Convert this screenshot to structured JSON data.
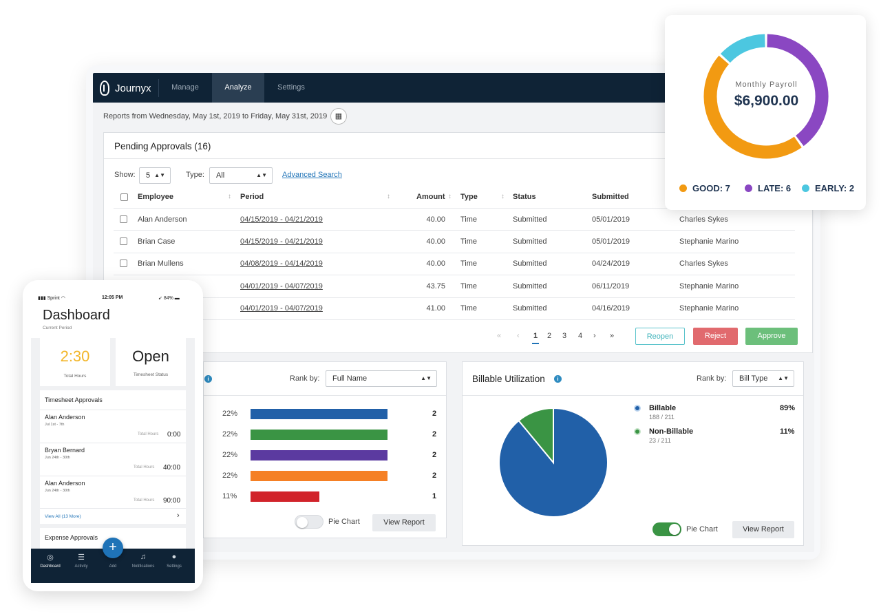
{
  "nav": {
    "brand": "Journyx",
    "items": [
      "Manage",
      "Analyze",
      "Settings"
    ],
    "active": "Analyze"
  },
  "report_range": "Reports from Wednesday, May 1st, 2019 to Friday, May 31st, 2019",
  "pending": {
    "title": "Pending Approvals (16)",
    "show_label": "Show:",
    "show_value": "5",
    "type_label": "Type:",
    "type_value": "All",
    "advanced_search": "Advanced Search",
    "columns": [
      "Employee",
      "Period",
      "Amount",
      "Type",
      "Status",
      "Submitted"
    ],
    "rows": [
      {
        "employee": "Alan Anderson",
        "period": "04/15/2019 - 04/21/2019",
        "amount": "40.00",
        "type": "Time",
        "status": "Submitted",
        "submitted": "05/01/2019",
        "approver": "Charles Sykes"
      },
      {
        "employee": "Brian Case",
        "period": "04/15/2019 - 04/21/2019",
        "amount": "40.00",
        "type": "Time",
        "status": "Submitted",
        "submitted": "05/01/2019",
        "approver": "Stephanie Marino"
      },
      {
        "employee": "Brian Mullens",
        "period": "04/08/2019 - 04/14/2019",
        "amount": "40.00",
        "type": "Time",
        "status": "Submitted",
        "submitted": "04/24/2019",
        "approver": "Charles Sykes"
      },
      {
        "employee": "",
        "period": "04/01/2019 - 04/07/2019",
        "amount": "43.75",
        "type": "Time",
        "status": "Submitted",
        "submitted": "06/11/2019",
        "approver": "Stephanie Marino"
      },
      {
        "employee": "",
        "period": "04/01/2019 - 04/07/2019",
        "amount": "41.00",
        "type": "Time",
        "status": "Submitted",
        "submitted": "04/16/2019",
        "approver": "Stephanie Marino"
      }
    ],
    "pagination": {
      "first": "«",
      "prev": "‹",
      "pages": [
        "1",
        "2",
        "3",
        "4"
      ],
      "current": "1",
      "next": "›",
      "last": "»"
    },
    "buttons": {
      "reopen": "Reopen",
      "reject": "Reject",
      "approve": "Approve"
    }
  },
  "rank_panel": {
    "rank_label": "Rank by:",
    "rank_value": "Full Name",
    "bars": [
      {
        "pct": "22%",
        "count": "2",
        "fraction": 1.0,
        "color": "#2160a8"
      },
      {
        "pct": "22%",
        "count": "2",
        "fraction": 1.0,
        "color": "#3a9444"
      },
      {
        "pct": "22%",
        "count": "2",
        "fraction": 1.0,
        "color": "#5b3aa0"
      },
      {
        "pct": "22%",
        "count": "2",
        "fraction": 1.0,
        "color": "#f58025"
      },
      {
        "pct": "11%",
        "count": "1",
        "fraction": 0.5,
        "color": "#d1232a"
      }
    ],
    "pie_toggle_label": "Pie Chart",
    "pie_toggle_on": false,
    "view_report": "View Report"
  },
  "billable": {
    "title": "Billable Utilization",
    "rank_label": "Rank by:",
    "rank_value": "Bill Type",
    "legend": [
      {
        "name": "Billable",
        "detail": "188 / 211",
        "pct": "89%",
        "color": "#2160a8"
      },
      {
        "name": "Non-Billable",
        "detail": "23 / 211",
        "pct": "11%",
        "color": "#3a9444"
      }
    ],
    "pie_toggle_label": "Pie Chart",
    "pie_toggle_on": true,
    "view_report": "View Report"
  },
  "payroll": {
    "label": "Monthly Payroll",
    "amount": "$6,900.00",
    "segments": [
      {
        "name": "GOOD: 7",
        "value": 7,
        "color": "#f29a12"
      },
      {
        "name": "LATE: 6",
        "value": 6,
        "color": "#8a47c2"
      },
      {
        "name": "EARLY: 2",
        "value": 2,
        "color": "#4cc7e0"
      }
    ]
  },
  "phone": {
    "carrier": "Sprint",
    "time": "12:05 PM",
    "battery": "84%",
    "title": "Dashboard",
    "subtitle": "Current Period",
    "total_hours": "2:30",
    "total_hours_label": "Total Hours",
    "timesheet_status": "Open",
    "timesheet_status_label": "Timesheet Status",
    "approvals_title": "Timesheet Approvals",
    "approvals": [
      {
        "name": "Alan Anderson",
        "dates": "Jul 1st - 7th",
        "hours_label": "Total Hours",
        "hours": "0:00"
      },
      {
        "name": "Bryan Bernard",
        "dates": "Jun 24th - 30th",
        "hours_label": "Total Hours",
        "hours": "40:00"
      },
      {
        "name": "Alan Anderson",
        "dates": "Jun 24th - 30th",
        "hours_label": "Total Hours",
        "hours": "90:00"
      }
    ],
    "view_all": "View All (13 More)",
    "expense_title": "Expense Approvals",
    "tabs": [
      "Dashboard",
      "Activity",
      "Add",
      "Notifications",
      "Settings"
    ],
    "fab": "+"
  },
  "colors": {
    "navy": "#0f2336",
    "link": "#1f73b7",
    "reject": "#e16a6e",
    "approve": "#6cbf7b"
  }
}
